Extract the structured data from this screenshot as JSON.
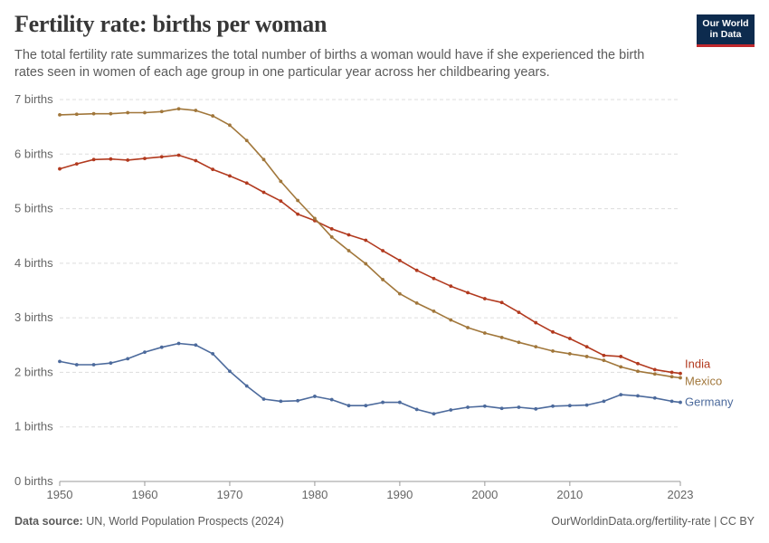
{
  "header": {
    "title": "Fertility rate: births per woman",
    "subtitle": "The total fertility rate summarizes the total number of births a woman would have if she experienced the birth rates seen in women of each age group in one particular year across her childbearing years.",
    "logo_line1": "Our World",
    "logo_line2": "in Data"
  },
  "footer": {
    "source_label": "Data source:",
    "source_text": "UN, World Population Prospects (2024)",
    "link_text": "OurWorldinData.org/fertility-rate | CC BY"
  },
  "chart_data": {
    "type": "line",
    "title": "Fertility rate: births per woman",
    "xlim": [
      1950,
      2023
    ],
    "ylim": [
      0,
      7
    ],
    "yticks": [
      0,
      1,
      2,
      3,
      4,
      5,
      6,
      7
    ],
    "ytick_labels": [
      "0 births",
      "1 births",
      "2 births",
      "3 births",
      "4 births",
      "5 births",
      "6 births",
      "7 births"
    ],
    "xticks": [
      1950,
      1960,
      1970,
      1980,
      1990,
      2000,
      2010,
      2023
    ],
    "xtick_labels": [
      "1950",
      "1960",
      "1970",
      "1980",
      "1990",
      "2000",
      "2010",
      "2023"
    ],
    "grid": "horizontal dashed",
    "legend": "inline labels at line ends (right)",
    "series": [
      {
        "name": "India",
        "color": "#b23a1f",
        "x": [
          1950,
          1952,
          1954,
          1956,
          1958,
          1960,
          1962,
          1964,
          1966,
          1968,
          1970,
          1972,
          1974,
          1976,
          1978,
          1980,
          1982,
          1984,
          1986,
          1988,
          1990,
          1992,
          1994,
          1996,
          1998,
          2000,
          2002,
          2004,
          2006,
          2008,
          2010,
          2012,
          2014,
          2016,
          2018,
          2020,
          2022,
          2023
        ],
        "values": [
          5.73,
          5.82,
          5.9,
          5.91,
          5.89,
          5.92,
          5.95,
          5.98,
          5.88,
          5.72,
          5.6,
          5.47,
          5.3,
          5.14,
          4.9,
          4.78,
          4.63,
          4.52,
          4.42,
          4.23,
          4.05,
          3.87,
          3.72,
          3.58,
          3.46,
          3.35,
          3.28,
          3.1,
          2.91,
          2.74,
          2.62,
          2.47,
          2.31,
          2.29,
          2.16,
          2.05,
          2.0,
          1.98
        ]
      },
      {
        "name": "Mexico",
        "color": "#a1773b",
        "x": [
          1950,
          1952,
          1954,
          1956,
          1958,
          1960,
          1962,
          1964,
          1966,
          1968,
          1970,
          1972,
          1974,
          1976,
          1978,
          1980,
          1982,
          1984,
          1986,
          1988,
          1990,
          1992,
          1994,
          1996,
          1998,
          2000,
          2002,
          2004,
          2006,
          2008,
          2010,
          2012,
          2014,
          2016,
          2018,
          2020,
          2022,
          2023
        ],
        "values": [
          6.72,
          6.73,
          6.74,
          6.74,
          6.76,
          6.76,
          6.78,
          6.83,
          6.8,
          6.7,
          6.53,
          6.25,
          5.9,
          5.5,
          5.15,
          4.82,
          4.48,
          4.23,
          3.99,
          3.7,
          3.44,
          3.27,
          3.12,
          2.96,
          2.82,
          2.72,
          2.64,
          2.55,
          2.47,
          2.39,
          2.34,
          2.29,
          2.22,
          2.1,
          2.02,
          1.97,
          1.92,
          1.9
        ]
      },
      {
        "name": "Germany",
        "color": "#4c6a9c",
        "x": [
          1950,
          1952,
          1954,
          1956,
          1958,
          1960,
          1962,
          1964,
          1966,
          1968,
          1970,
          1972,
          1974,
          1976,
          1978,
          1980,
          1982,
          1984,
          1986,
          1988,
          1990,
          1992,
          1994,
          1996,
          1998,
          2000,
          2002,
          2004,
          2006,
          2008,
          2010,
          2012,
          2014,
          2016,
          2018,
          2020,
          2022,
          2023
        ],
        "values": [
          2.2,
          2.14,
          2.14,
          2.17,
          2.25,
          2.37,
          2.46,
          2.53,
          2.5,
          2.34,
          2.02,
          1.75,
          1.51,
          1.47,
          1.48,
          1.56,
          1.5,
          1.39,
          1.39,
          1.45,
          1.45,
          1.32,
          1.24,
          1.31,
          1.36,
          1.38,
          1.34,
          1.36,
          1.33,
          1.38,
          1.39,
          1.4,
          1.47,
          1.59,
          1.57,
          1.53,
          1.47,
          1.45
        ]
      }
    ]
  }
}
